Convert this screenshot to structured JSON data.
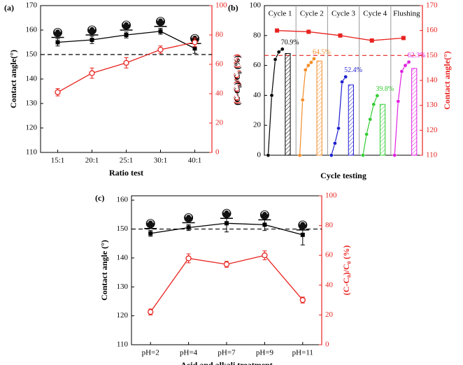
{
  "chart_data": [
    {
      "type": "line",
      "title": "(a)",
      "categories": [
        "15:1",
        "20:1",
        "25:1",
        "30:1",
        "40:1"
      ],
      "xlabel": "Ratio test",
      "ylabel": "Contact angle(°)",
      "y2label": "(C-C₀)/C₀ (%)",
      "ylim": [
        110,
        170
      ],
      "yticks": [
        110,
        120,
        130,
        140,
        150,
        160,
        170
      ],
      "y2lim": [
        0,
        100
      ],
      "y2ticks": [
        0,
        20,
        40,
        60,
        80,
        100
      ],
      "hline": {
        "value": 150,
        "axis": "y",
        "color": "#000000"
      },
      "series": [
        {
          "color": "#000000",
          "marker": "square",
          "values": [
            155,
            156,
            158,
            159.5,
            152.5
          ],
          "errors": [
            1.5,
            1.5,
            1.2,
            1.2,
            2
          ]
        },
        {
          "color": "#e8231f",
          "marker": "circle",
          "axis": "y2",
          "values": [
            41,
            54,
            61,
            70,
            75
          ],
          "errors": [
            2.5,
            3.5,
            3.5,
            2.5,
            3
          ]
        }
      ]
    },
    {
      "type": "cycle",
      "title": "(b)",
      "xlabel": "Cycle testing",
      "ylabel": "(C-C₀)/C₀ (%)",
      "y2label": "Contact angle(°)",
      "ylim": [
        0,
        100
      ],
      "yticks": [
        0,
        20,
        40,
        60,
        80,
        100
      ],
      "y2lim": [
        110,
        170
      ],
      "y2ticks": [
        110,
        120,
        130,
        140,
        150,
        160,
        170
      ],
      "hline": {
        "value": 150,
        "axis": "y2",
        "color": "#e8231f"
      },
      "groups": [
        {
          "name": "Cycle 1",
          "color": "#000000",
          "values": [
            0,
            40,
            64,
            69,
            70.9
          ],
          "value_labels": [
            null,
            null,
            null,
            null,
            "70.9%"
          ],
          "bar": 68
        },
        {
          "name": "Cycle 2",
          "color": "#f28c28",
          "values": [
            0,
            37,
            57,
            60,
            62,
            64.5
          ],
          "value_labels": [
            null,
            null,
            null,
            null,
            null,
            "64.5%"
          ],
          "bar": 63
        },
        {
          "name": "Cycle 3",
          "color": "#1f1fd0",
          "values": [
            0,
            8,
            18,
            49,
            52.4
          ],
          "value_labels": [
            null,
            null,
            null,
            null,
            "52.4%"
          ],
          "bar": 47
        },
        {
          "name": "Cycle 4",
          "color": "#33cc33",
          "values": [
            0,
            14,
            24,
            34,
            39.8
          ],
          "value_labels": [
            null,
            null,
            null,
            null,
            "39.8%"
          ],
          "bar": 34
        },
        {
          "name": "Flushing",
          "color": "#e020e0",
          "values": [
            0,
            36,
            56,
            60,
            62.3
          ],
          "value_labels": [
            null,
            null,
            null,
            null,
            "62.3%"
          ],
          "bar": 58
        }
      ],
      "series": [
        {
          "color": "#e8231f",
          "marker": "square",
          "axis": "y2",
          "values": [
            160,
            159.5,
            158,
            156,
            157
          ]
        }
      ]
    },
    {
      "type": "line",
      "title": "(c)",
      "categories": [
        "pH=2",
        "pH=4",
        "pH=7",
        "pH=9",
        "pH=11"
      ],
      "xlabel": "Acid and alkali treatment",
      "ylabel": "Contact angle (°)",
      "y2label": "(C-C₀)/C₀ (%)",
      "ylim": [
        110,
        161.5
      ],
      "yticks": [
        110,
        120,
        130,
        140,
        150,
        160
      ],
      "y2lim": [
        0,
        100
      ],
      "y2ticks": [
        0,
        20,
        40,
        60,
        80,
        100
      ],
      "hline": {
        "value": 150,
        "axis": "y",
        "color": "#000000"
      },
      "series": [
        {
          "color": "#000000",
          "marker": "square",
          "values": [
            148.5,
            150.5,
            152,
            151.5,
            148
          ],
          "errors": [
            1,
            1,
            3,
            2,
            3.5
          ]
        },
        {
          "color": "#e8231f",
          "marker": "circle",
          "axis": "y2",
          "values": [
            22,
            58,
            54,
            60,
            30
          ],
          "errors": [
            2,
            3,
            2,
            3,
            2
          ]
        }
      ]
    }
  ]
}
